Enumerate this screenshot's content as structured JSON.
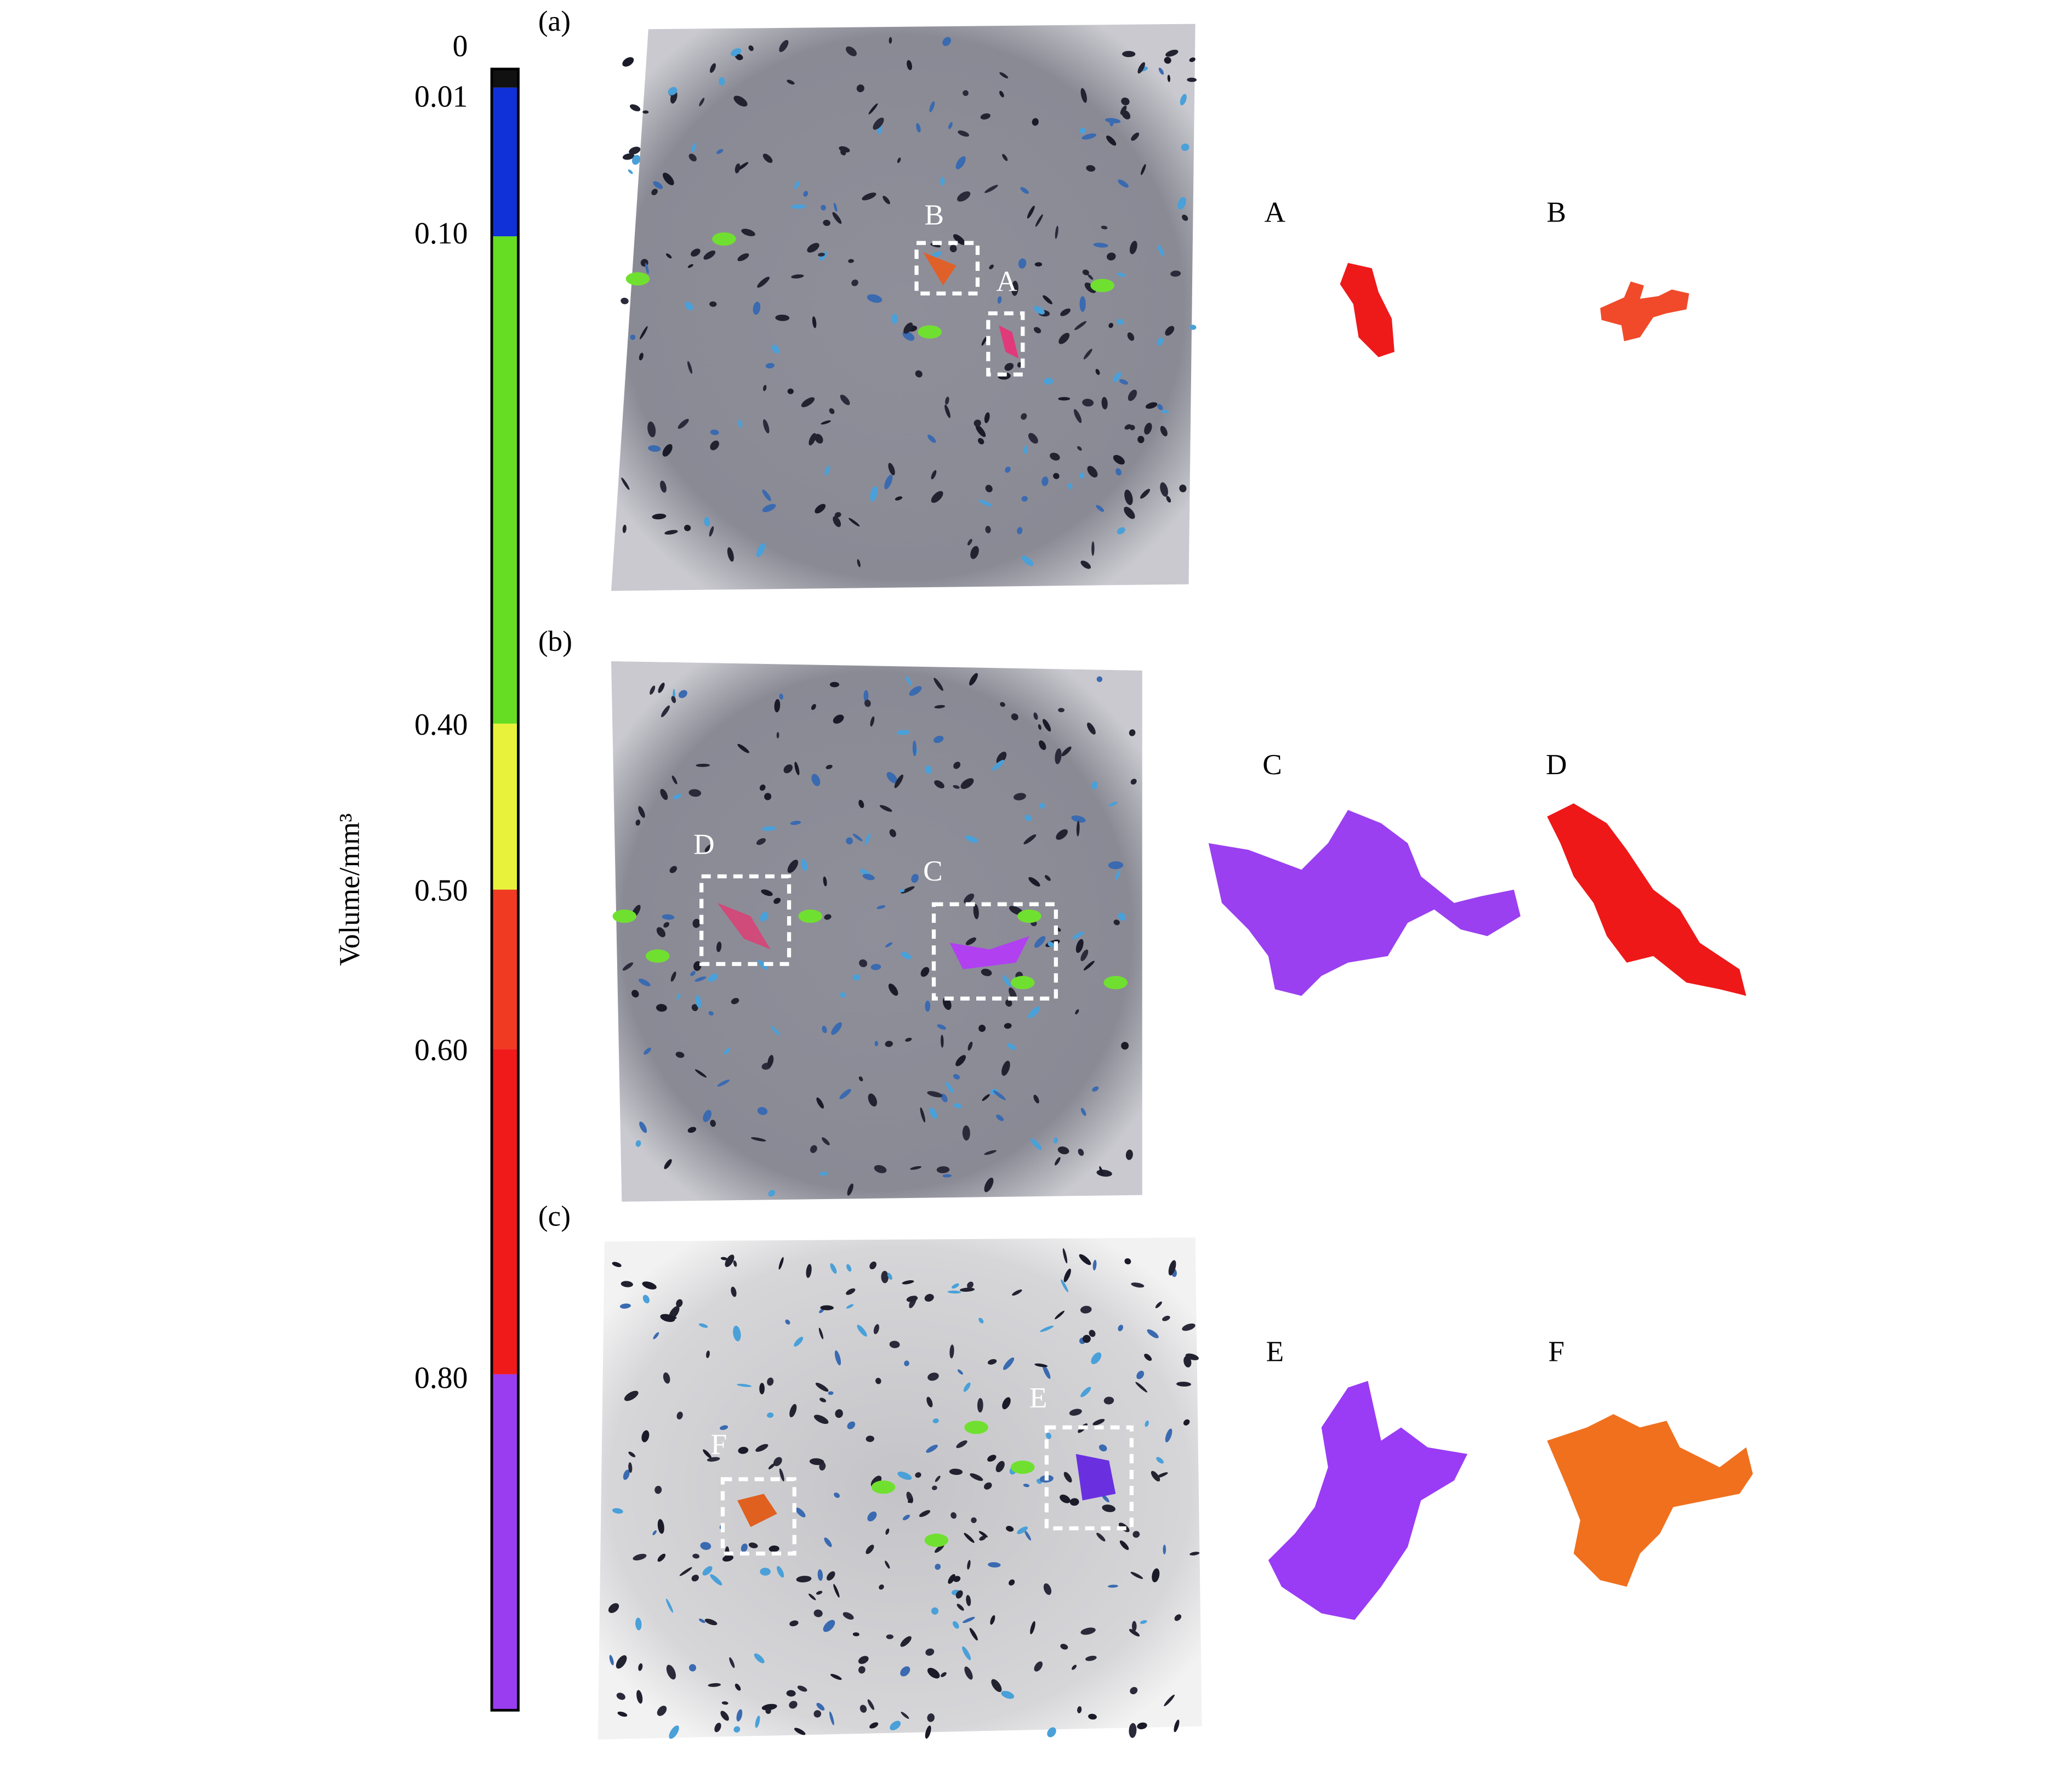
{
  "colorbar": {
    "title": "Volume/mm³",
    "ticks": [
      "0",
      "0.01",
      "0.10",
      "0.40",
      "0.50",
      "0.60",
      "0.80"
    ]
  },
  "panels": [
    {
      "label": "(a)",
      "boxes": [
        "B",
        "A"
      ]
    },
    {
      "label": "(b)",
      "boxes": [
        "D",
        "C"
      ]
    },
    {
      "label": "(c)",
      "boxes": [
        "F",
        "E"
      ]
    }
  ],
  "insets": [
    "A",
    "B",
    "C",
    "D",
    "E",
    "F"
  ]
}
